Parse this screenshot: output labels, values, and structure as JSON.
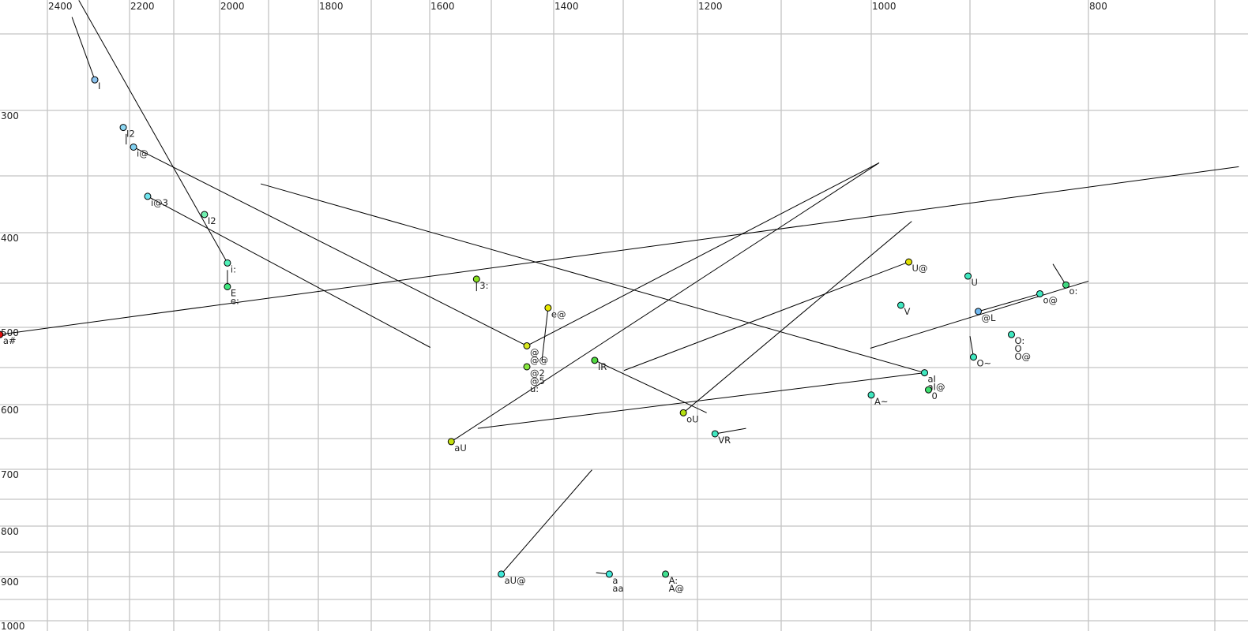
{
  "chart_data": {
    "type": "scatter",
    "title": "",
    "xlabel": "",
    "ylabel": "",
    "x_axis": {
      "reversed": true,
      "scale": "auditory (nonlinear)",
      "tick_labels": [
        2400,
        2200,
        2000,
        1800,
        1600,
        1400,
        1200,
        1000,
        800
      ],
      "grid_step": 100
    },
    "y_axis": {
      "reversed": true,
      "scale": "auditory (nonlinear)",
      "tick_labels": [
        300,
        400,
        500,
        600,
        700,
        800,
        900,
        1000
      ],
      "grid_step": 50
    },
    "grid": true,
    "points": [
      {
        "x": 2283,
        "y": 280,
        "color": "#8cc4f0",
        "labels": [
          "I"
        ]
      },
      {
        "x": 2215,
        "y": 313,
        "color": "#8cd8f4",
        "labels": [
          "I2"
        ]
      },
      {
        "x": 2191,
        "y": 328,
        "color": "#80d0f0",
        "labels": [
          "i@"
        ]
      },
      {
        "x": 2159,
        "y": 368,
        "color": "#70e6f0",
        "labels": [
          "i@3"
        ]
      },
      {
        "x": 2033,
        "y": 384,
        "color": "#70f0b0",
        "labels": [
          "I2"
        ],
        "label_color": "#7070a0",
        "no_outline": true
      },
      {
        "x": 1984,
        "y": 430,
        "color": "#50f0b8",
        "labels": [
          "i:"
        ]
      },
      {
        "x": 1984,
        "y": 454,
        "color": "#40e880",
        "labels": [
          "E",
          "e:"
        ]
      },
      {
        "x": 2518,
        "y": 509,
        "color": "#e01010",
        "labels": [
          "a#"
        ]
      },
      {
        "x": 1524,
        "y": 446,
        "color": "#88e020",
        "labels": [
          "3:"
        ]
      },
      {
        "x": 1409,
        "y": 478,
        "color": "#e8e800",
        "labels": [
          "e@"
        ]
      },
      {
        "x": 1443,
        "y": 523,
        "color": "#d8e820",
        "labels": [
          "@",
          "@@"
        ]
      },
      {
        "x": 1443,
        "y": 549,
        "color": "#88e840",
        "labels": [
          "@2",
          "@5",
          "u:"
        ],
        "no_outline": true
      },
      {
        "x": 1341,
        "y": 541,
        "color": "#50d840",
        "labels": [
          "IR"
        ]
      },
      {
        "x": 1565,
        "y": 655,
        "color": "#c4e010",
        "labels": [
          "aU"
        ]
      },
      {
        "x": 1219,
        "y": 612,
        "color": "#b4e010",
        "labels": [
          "oU"
        ]
      },
      {
        "x": 1179,
        "y": 643,
        "color": "#40e8c0",
        "labels": [
          "VR"
        ]
      },
      {
        "x": 962,
        "y": 429,
        "color": "#e0e000",
        "labels": [
          "U@"
        ]
      },
      {
        "x": 902,
        "y": 443,
        "color": "#40e8c0",
        "labels": [
          "U"
        ]
      },
      {
        "x": 970,
        "y": 475,
        "color": "#40e8c0",
        "labels": [
          "V"
        ]
      },
      {
        "x": 893,
        "y": 482,
        "color": "#70b8f0",
        "labels": [
          "@L"
        ]
      },
      {
        "x": 841,
        "y": 462,
        "color": "#40e8c0",
        "labels": [
          "o@"
        ]
      },
      {
        "x": 819,
        "y": 452,
        "color": "#40d880",
        "labels": [
          "o:"
        ]
      },
      {
        "x": 865,
        "y": 509,
        "color": "#40e8c0",
        "labels": [
          "O:",
          "O",
          "O@"
        ]
      },
      {
        "x": 897,
        "y": 537,
        "color": "#40e8c0",
        "labels": [
          "O~"
        ]
      },
      {
        "x": 946,
        "y": 557,
        "color": "#40e8c0",
        "labels": [
          "aI",
          "aI@"
        ]
      },
      {
        "x": 942,
        "y": 580,
        "color": "#40e070",
        "labels": [
          "0"
        ]
      },
      {
        "x": 1000,
        "y": 587,
        "color": "#40e8c0",
        "labels": [
          "A~"
        ]
      },
      {
        "x": 1484,
        "y": 895,
        "color": "#40e8d8",
        "labels": [
          "aU@"
        ]
      },
      {
        "x": 1320,
        "y": 895,
        "color": "#40e8d8",
        "labels": [
          "a",
          "aa"
        ]
      },
      {
        "x": 1243,
        "y": 895,
        "color": "#40e090",
        "labels": [
          "A:",
          "A@"
        ]
      }
    ],
    "trajectories": [
      [
        [
          2339,
          239
        ],
        [
          2283,
          280
        ]
      ],
      [
        [
          2322,
          228
        ],
        [
          1984,
          430
        ]
      ],
      [
        [
          2208,
          318
        ],
        [
          2208,
          326
        ]
      ],
      [
        [
          2191,
          328
        ],
        [
          1443,
          523
        ]
      ],
      [
        [
          2159,
          368
        ],
        [
          1599,
          525
        ]
      ],
      [
        [
          1916,
          357
        ],
        [
          946,
          557
        ]
      ],
      [
        [
          2518,
          509
        ],
        [
          681,
          343
        ]
      ],
      [
        [
          1984,
          437
        ],
        [
          1984,
          454
        ]
      ],
      [
        [
          1524,
          446
        ],
        [
          1524,
          459
        ]
      ],
      [
        [
          1409,
          478
        ],
        [
          1419,
          542
        ]
      ],
      [
        [
          1443,
          523
        ],
        [
          992,
          340
        ]
      ],
      [
        [
          1565,
          655
        ],
        [
          992,
          340
        ]
      ],
      [
        [
          1341,
          541
        ],
        [
          1189,
          612
        ]
      ],
      [
        [
          1299,
          554
        ],
        [
          962,
          429
        ]
      ],
      [
        [
          1219,
          612
        ],
        [
          959,
          390
        ]
      ],
      [
        [
          1522,
          635
        ],
        [
          946,
          557
        ]
      ],
      [
        [
          1179,
          643
        ],
        [
          1142,
          635
        ]
      ],
      [
        [
          1001,
          526
        ],
        [
          800,
          448
        ]
      ],
      [
        [
          893,
          482
        ],
        [
          841,
          462
        ]
      ],
      [
        [
          830,
          431
        ],
        [
          819,
          452
        ]
      ],
      [
        [
          900,
          511
        ],
        [
          897,
          537
        ]
      ],
      [
        [
          1484,
          895
        ],
        [
          1345,
          701
        ]
      ],
      [
        [
          1339,
          892
        ],
        [
          1320,
          895
        ]
      ],
      [
        [
          1243,
          892
        ],
        [
          1243,
          895
        ]
      ]
    ]
  }
}
